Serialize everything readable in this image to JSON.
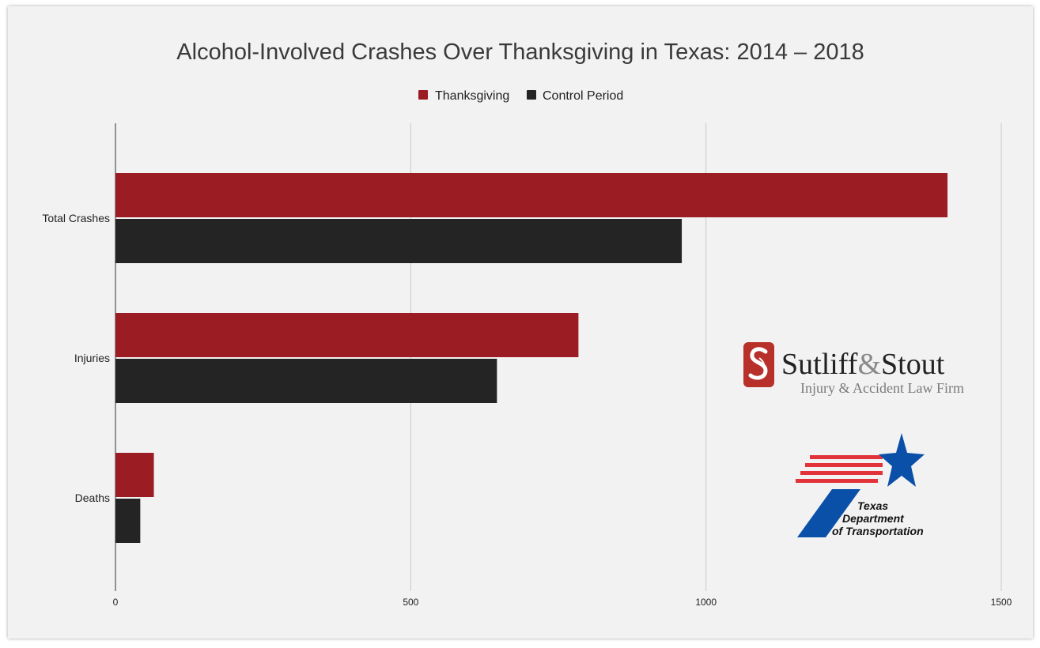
{
  "chart_data": {
    "type": "bar",
    "orientation": "horizontal",
    "title": "Alcohol-Involved Crashes Over Thanksgiving in Texas: 2014 – 2018",
    "categories": [
      "Total Crashes",
      "Injuries",
      "Deaths"
    ],
    "series": [
      {
        "name": "Thanksgiving",
        "color": "#9b1c22",
        "values": [
          1409,
          784,
          65
        ]
      },
      {
        "name": "Control Period",
        "color": "#242424",
        "values": [
          959,
          646,
          42
        ]
      }
    ],
    "xlim": [
      0,
      1500
    ],
    "xticks": [
      0,
      500,
      1000,
      1500
    ],
    "grid": true,
    "legend_position": "top-center"
  },
  "logos": {
    "sutliff": {
      "name_part1": "Sutliff",
      "ampersand": "&",
      "name_part2": "Stout",
      "tagline": "Injury & Accident Law Firm",
      "color": "#b8302a"
    },
    "txdot": {
      "line1": "Texas",
      "line2": "Department",
      "line3": "of Transportation",
      "red": "#e2333b",
      "blue": "#0a4fa8"
    }
  }
}
